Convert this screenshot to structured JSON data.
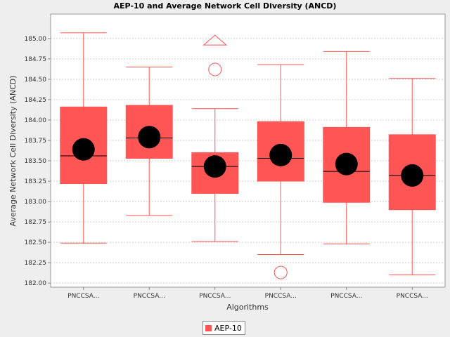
{
  "chart_data": {
    "type": "boxplot",
    "title": "AEP-10 and Average Network Cell Diversity (ANCD)",
    "xlabel": "Algorithms",
    "ylabel": "Average Network Cell Diversity (ANCD)",
    "ylim": [
      181.95,
      185.3
    ],
    "yticks": [
      "182.00",
      "182.25",
      "182.50",
      "182.75",
      "183.00",
      "183.25",
      "183.50",
      "183.75",
      "184.00",
      "184.25",
      "184.50",
      "184.75",
      "185.00"
    ],
    "grid": true,
    "legend_position": "bottom-center",
    "colors": {
      "box": "#ff5555",
      "mean": "#000000",
      "whisker": "#ff5555",
      "plot_bg": "#ffffff",
      "grid": "#d0d0d0"
    },
    "categories": [
      "PNCCSA...",
      "PNCCSA...",
      "PNCCSA...",
      "PNCCSA...",
      "PNCCSA...",
      "PNCCSA..."
    ],
    "series": [
      {
        "name": "AEP-10",
        "boxes": [
          {
            "min": 182.49,
            "q1": 183.22,
            "median": 183.56,
            "q3": 184.16,
            "max": 185.07,
            "mean": 183.64,
            "outliers": [],
            "far_outliers": []
          },
          {
            "min": 182.83,
            "q1": 183.53,
            "median": 183.78,
            "q3": 184.18,
            "max": 184.65,
            "mean": 183.79,
            "outliers": [],
            "far_outliers": []
          },
          {
            "min": 182.51,
            "q1": 183.1,
            "median": 183.43,
            "q3": 183.6,
            "max": 184.14,
            "mean": 183.43,
            "outliers": [
              184.62
            ],
            "far_outliers": [
              184.98
            ]
          },
          {
            "min": 182.35,
            "q1": 183.25,
            "median": 183.53,
            "q3": 183.98,
            "max": 184.68,
            "mean": 183.57,
            "outliers": [
              182.13
            ],
            "far_outliers": []
          },
          {
            "min": 182.48,
            "q1": 182.99,
            "median": 183.37,
            "q3": 183.91,
            "max": 184.84,
            "mean": 183.46,
            "outliers": [],
            "far_outliers": []
          },
          {
            "min": 182.1,
            "q1": 182.9,
            "median": 183.32,
            "q3": 183.82,
            "max": 184.51,
            "mean": 183.32,
            "outliers": [],
            "far_outliers": []
          }
        ]
      }
    ]
  },
  "legend": {
    "label": "AEP-10",
    "color": "#ff5555"
  }
}
